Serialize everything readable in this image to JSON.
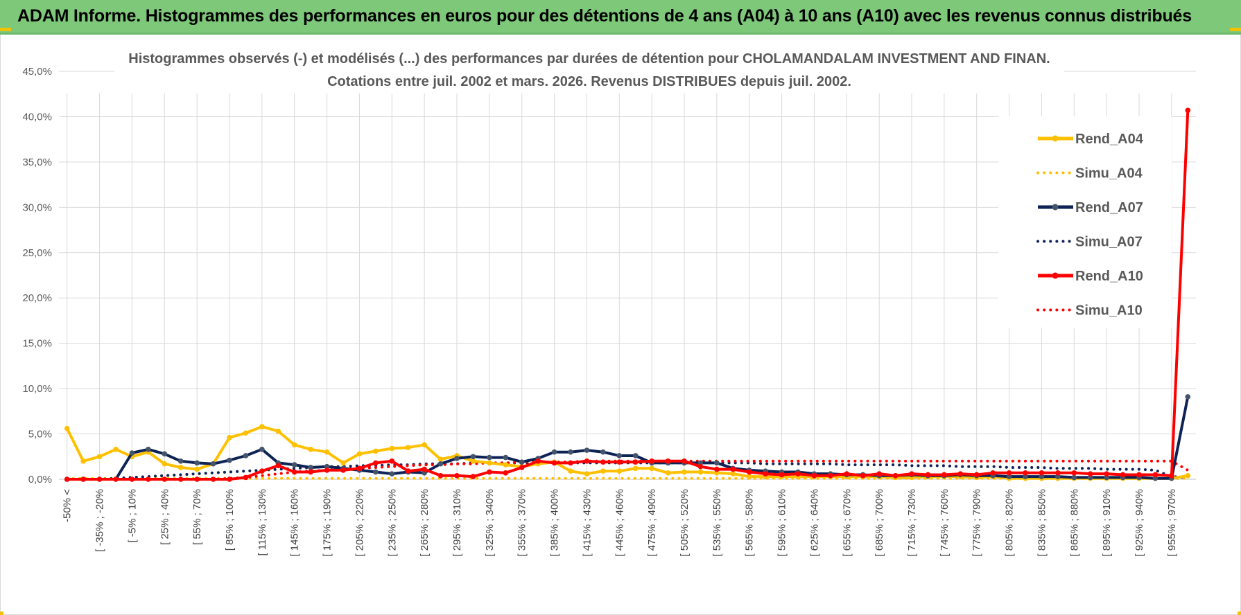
{
  "header": {
    "title": "ADAM Informe. Histogrammes des performances en euros pour des détentions de 4 ans (A04) à 10 ans (A10) avec les revenus connus distribués"
  },
  "colors": {
    "banner": "#7ec87a",
    "A04": "#FFC000",
    "A07": "#0D2255",
    "A07_marker": "#44546A",
    "A10": "#FF0000",
    "grid": "#d9d9d9"
  },
  "chart_data": {
    "type": "line",
    "title": "Histogrammes observés (-) et modélisés (...) des performances par durées de détention pour CHOLAMANDALAM INVESTMENT AND FINAN.",
    "subtitle": "Cotations entre juil. 2002 et mars. 2026. Revenus DISTRIBUES depuis juil. 2002.",
    "xlabel": "",
    "ylabel": "",
    "ylim": [
      0,
      45
    ],
    "y_ticks": [
      "0,0%",
      "5,0%",
      "10,0%",
      "15,0%",
      "20,0%",
      "25,0%",
      "30,0%",
      "35,0%",
      "40,0%",
      "45,0%"
    ],
    "tick_labels": [
      "-50% <",
      "[ -35% ; -20%",
      "[ -5% ; 10%",
      "[ 25% ; 40%",
      "[ 55% ; 70%",
      "[ 85% ; 100%",
      "[ 115% ; 130%",
      "[ 145% ; 160%",
      "[ 175% ; 190%",
      "[ 205% ; 220%",
      "[ 235% ; 250%",
      "[ 265% ; 280%",
      "[ 295% ; 310%",
      "[ 325% ; 340%",
      "[ 355% ; 370%",
      "[ 385% ; 400%",
      "[ 415% ; 430%",
      "[ 445% ; 460%",
      "[ 475% ; 490%",
      "[ 505% ; 520%",
      "[ 535% ; 550%",
      "[ 565% ; 580%",
      "[ 595% ; 610%",
      "[ 625% ; 640%",
      "[ 655% ; 670%",
      "[ 685% ; 700%",
      "[ 715% ; 730%",
      "[ 745% ; 760%",
      "[ 775% ; 790%",
      "[ 805% ; 820%",
      "[ 835% ; 850%",
      "[ 865% ; 880%",
      "[ 895% ; 910%",
      "[ 925% ; 940%",
      "[ 955% ; 970%"
    ],
    "n_categories": 70,
    "legend_position": "right",
    "series": [
      {
        "name": "Rend_A04",
        "style": "solid",
        "color": "#FFC000",
        "values": [
          5.6,
          2.0,
          2.5,
          3.3,
          2.5,
          3.0,
          1.7,
          1.3,
          1.1,
          1.7,
          4.6,
          5.1,
          5.8,
          5.3,
          3.8,
          3.3,
          3.0,
          1.8,
          2.8,
          3.1,
          3.4,
          3.5,
          3.8,
          2.2,
          2.6,
          2.0,
          1.8,
          1.6,
          1.4,
          1.7,
          1.9,
          0.9,
          0.6,
          0.9,
          0.9,
          1.2,
          1.2,
          0.7,
          0.8,
          0.8,
          0.7,
          0.6,
          0.3,
          0.3,
          0.3,
          0.3,
          0.3,
          0.3,
          0.3,
          0.3,
          0.3,
          0.2,
          0.2,
          0.3,
          0.3,
          0.3,
          0.2,
          0.3,
          0.1,
          0.1,
          0.1,
          0.1,
          0.1,
          0.1,
          0.1,
          0.1,
          0.1,
          0.1,
          0.1,
          0.4
        ]
      },
      {
        "name": "Simu_A04",
        "style": "dotted",
        "color": "#FFC000",
        "values": [
          0.1,
          0.1,
          0.1,
          0.1,
          0.1,
          0.1,
          0.1,
          0.1,
          0.1,
          0.1,
          0.1,
          0.1,
          0.1,
          0.1,
          0.1,
          0.1,
          0.1,
          0.1,
          0.1,
          0.1,
          0.1,
          0.1,
          0.1,
          0.1,
          0.1,
          0.1,
          0.1,
          0.1,
          0.1,
          0.1,
          0.1,
          0.1,
          0.1,
          0.1,
          0.1,
          0.1,
          0.1,
          0.1,
          0.1,
          0.1,
          0.1,
          0.1,
          0.1,
          0.1,
          0.1,
          0.1,
          0.1,
          0.1,
          0.1,
          0.1,
          0.1,
          0.1,
          0.1,
          0.1,
          0.1,
          0.1,
          0.1,
          0.1,
          0.1,
          0.1,
          0.1,
          0.1,
          0.1,
          0.1,
          0.1,
          0.1,
          0.1,
          0.1,
          0.1,
          0.1
        ]
      },
      {
        "name": "Rend_A07",
        "style": "solid",
        "color": "#0D2255",
        "values": [
          0.0,
          0.0,
          0.0,
          0.0,
          2.9,
          3.3,
          2.8,
          2.0,
          1.8,
          1.7,
          2.1,
          2.6,
          3.3,
          1.8,
          1.6,
          1.3,
          1.4,
          1.2,
          1.0,
          0.8,
          0.6,
          0.8,
          0.7,
          1.7,
          2.3,
          2.5,
          2.4,
          2.4,
          1.9,
          2.3,
          3.0,
          3.0,
          3.2,
          3.0,
          2.6,
          2.6,
          1.8,
          1.8,
          1.8,
          1.8,
          1.8,
          1.2,
          1.0,
          0.9,
          0.8,
          0.8,
          0.6,
          0.6,
          0.5,
          0.5,
          0.4,
          0.4,
          0.5,
          0.4,
          0.4,
          0.5,
          0.4,
          0.4,
          0.3,
          0.3,
          0.3,
          0.3,
          0.2,
          0.2,
          0.2,
          0.2,
          0.2,
          0.1,
          0.1,
          9.1
        ]
      },
      {
        "name": "Simu_A07",
        "style": "dotted",
        "color": "#0D2255",
        "values": [
          0.0,
          0.0,
          0.0,
          0.1,
          0.2,
          0.3,
          0.4,
          0.5,
          0.6,
          0.7,
          0.8,
          0.9,
          1.0,
          1.1,
          1.2,
          1.3,
          1.4,
          1.4,
          1.5,
          1.5,
          1.6,
          1.6,
          1.7,
          1.7,
          1.7,
          1.8,
          1.8,
          1.8,
          1.8,
          1.8,
          1.8,
          1.8,
          1.8,
          1.8,
          1.8,
          1.8,
          1.8,
          1.8,
          1.8,
          1.8,
          1.8,
          1.8,
          1.8,
          1.7,
          1.7,
          1.7,
          1.7,
          1.7,
          1.6,
          1.6,
          1.6,
          1.6,
          1.5,
          1.5,
          1.5,
          1.4,
          1.4,
          1.4,
          1.3,
          1.3,
          1.3,
          1.2,
          1.2,
          1.2,
          1.1,
          1.1,
          1.1,
          1.0,
          0.3,
          0.2
        ]
      },
      {
        "name": "Rend_A10",
        "style": "solid",
        "color": "#FF0000",
        "values": [
          0.0,
          0.0,
          0.0,
          0.0,
          0.0,
          0.0,
          0.0,
          0.0,
          0.0,
          0.0,
          0.0,
          0.2,
          0.9,
          1.5,
          0.8,
          0.8,
          1.0,
          1.0,
          1.2,
          1.8,
          2.0,
          0.9,
          1.1,
          0.4,
          0.4,
          0.3,
          0.8,
          0.7,
          1.3,
          2.0,
          1.8,
          1.8,
          2.0,
          1.9,
          1.9,
          1.9,
          2.0,
          2.0,
          2.0,
          1.4,
          1.1,
          1.1,
          0.8,
          0.6,
          0.5,
          0.6,
          0.4,
          0.4,
          0.6,
          0.4,
          0.6,
          0.4,
          0.6,
          0.5,
          0.5,
          0.6,
          0.5,
          0.7,
          0.7,
          0.7,
          0.7,
          0.7,
          0.7,
          0.6,
          0.6,
          0.5,
          0.5,
          0.5,
          0.4,
          40.7
        ]
      },
      {
        "name": "Simu_A10",
        "style": "dotted",
        "color": "#FF0000",
        "values": [
          0.0,
          0.0,
          0.0,
          0.0,
          0.0,
          0.0,
          0.0,
          0.0,
          0.0,
          0.0,
          0.1,
          0.2,
          0.4,
          0.6,
          0.8,
          0.9,
          1.0,
          1.1,
          1.2,
          1.3,
          1.4,
          1.5,
          1.6,
          1.6,
          1.7,
          1.7,
          1.8,
          1.8,
          1.9,
          1.9,
          1.9,
          1.9,
          2.0,
          2.0,
          2.0,
          2.0,
          2.0,
          2.0,
          2.0,
          2.0,
          2.0,
          2.0,
          2.0,
          2.0,
          2.0,
          2.0,
          2.0,
          2.0,
          2.0,
          2.0,
          2.0,
          2.0,
          2.0,
          2.0,
          2.0,
          2.0,
          2.0,
          2.0,
          2.0,
          2.0,
          2.0,
          2.0,
          2.0,
          2.0,
          2.0,
          2.0,
          2.0,
          2.0,
          2.0,
          1.0
        ]
      }
    ]
  }
}
